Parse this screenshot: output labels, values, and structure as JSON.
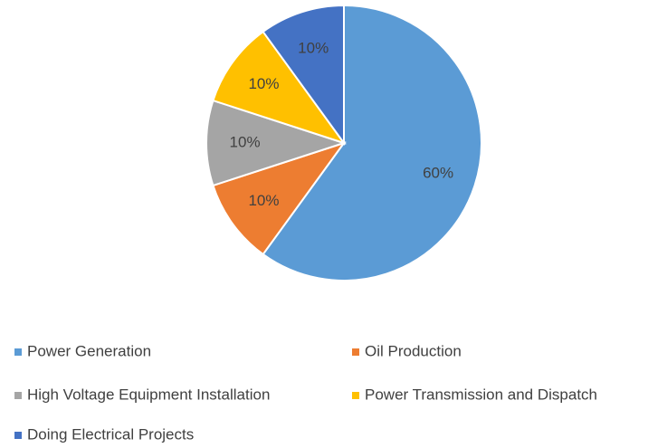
{
  "chart_data": {
    "type": "pie",
    "categories": [
      "Power Generation",
      "Oil Production",
      "High Voltage Equipment Installation",
      "Power Transmission and Dispatch",
      "Doing Electrical Projects"
    ],
    "values": [
      60,
      10,
      10,
      10,
      10
    ],
    "value_labels": [
      "60%",
      "10%",
      "10%",
      "10%",
      "10%"
    ],
    "colors": [
      "#5b9bd5",
      "#ed7d31",
      "#a5a5a5",
      "#ffc000",
      "#4472c4"
    ],
    "legend": "bottom"
  }
}
